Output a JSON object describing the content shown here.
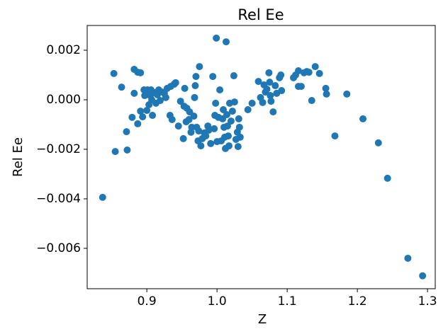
{
  "chart_data": {
    "type": "scatter",
    "title": "Rel Ee",
    "xlabel": "Z",
    "ylabel": "Rel Ee",
    "color": "#1f77b4",
    "x": [
      0.837,
      0.853,
      0.855,
      0.864,
      0.871,
      0.872,
      0.879,
      0.882,
      0.882,
      0.887,
      0.887,
      0.891,
      0.891,
      0.894,
      0.896,
      0.897,
      0.9,
      0.901,
      0.903,
      0.905,
      0.906,
      0.907,
      0.908,
      0.911,
      0.913,
      0.915,
      0.917,
      0.919,
      0.922,
      0.925,
      0.927,
      0.929,
      0.933,
      0.934,
      0.936,
      0.939,
      0.941,
      0.945,
      0.948,
      0.952,
      0.953,
      0.954,
      0.956,
      0.957,
      0.96,
      0.961,
      0.963,
      0.964,
      0.967,
      0.968,
      0.969,
      0.97,
      0.971,
      0.973,
      0.974,
      0.975,
      0.977,
      0.979,
      0.982,
      0.984,
      0.987,
      0.988,
      0.991,
      0.994,
      0.996,
      0.997,
      0.998,
      0.999,
      1.0,
      1.002,
      1.004,
      1.006,
      1.008,
      1.009,
      1.01,
      1.011,
      1.012,
      1.013,
      1.014,
      1.015,
      1.016,
      1.017,
      1.018,
      1.02,
      1.022,
      1.024,
      1.025,
      1.027,
      1.029,
      1.03,
      1.031,
      1.032,
      1.033,
      1.044,
      1.05,
      1.059,
      1.062,
      1.065,
      1.067,
      1.069,
      1.071,
      1.074,
      1.075,
      1.076,
      1.077,
      1.08,
      1.083,
      1.085,
      1.089,
      1.091,
      1.092,
      1.109,
      1.112,
      1.116,
      1.116,
      1.12,
      1.124,
      1.128,
      1.131,
      1.135,
      1.14,
      1.146,
      1.155,
      1.156,
      1.168,
      1.185,
      1.208,
      1.23,
      1.243,
      1.272,
      1.293
    ],
    "values": [
      -0.00394,
      0.00106,
      -0.00209,
      0.00051,
      -0.00129,
      -0.00203,
      -0.00071,
      0.00123,
      0.00026,
      0.00111,
      -0.00097,
      0.00109,
      -0.00046,
      -0.00069,
      0.0004,
      0.00017,
      -0.00043,
      0.0004,
      -0.0002,
      0.00017,
      0.0004,
      0.0,
      -0.00063,
      0.00029,
      -0.00014,
      0.0002,
      0.0004,
      -3e-05,
      0.00031,
      0.00026,
      9e-05,
      0.00046,
      -0.00063,
      0.00054,
      -0.0008,
      0.00063,
      0.00069,
      -0.00106,
      -6e-05,
      -0.00157,
      -0.00026,
      0.00046,
      -0.00089,
      -0.00034,
      -0.0008,
      -0.00049,
      -0.00131,
      -0.00111,
      -0.00066,
      9e-05,
      0.00057,
      0.00094,
      -0.00111,
      -0.00166,
      -0.00126,
      0.00134,
      -0.00186,
      -0.00157,
      -0.00134,
      -0.00146,
      -0.00106,
      -0.00123,
      -0.00177,
      0.00094,
      -0.00117,
      -0.00063,
      -0.00014,
      0.00249,
      -0.00169,
      -0.00071,
      0.0004,
      -0.00166,
      -0.00077,
      -0.0004,
      -0.00111,
      -0.00151,
      -0.00197,
      0.00234,
      -0.0006,
      -0.00106,
      -0.00146,
      -0.00186,
      -0.00014,
      -0.00086,
      -0.00046,
      0.00097,
      -9e-05,
      -0.0016,
      -0.00131,
      -0.00189,
      -0.00077,
      -0.00111,
      -0.00151,
      -0.0004,
      -0.00014,
      0.00074,
      9e-05,
      -0.00011,
      0.0006,
      0.00031,
      0.00043,
      0.00109,
      0.00071,
      0.00017,
      -6e-05,
      -0.00049,
      0.00057,
      0.00026,
      0.00089,
      0.001,
      0.00037,
      0.00089,
      0.001,
      0.00117,
      0.00054,
      0.00054,
      0.00109,
      0.00114,
      0.00111,
      -3e-05,
      0.00134,
      0.00106,
      0.00046,
      0.00023,
      -0.00146,
      0.00023,
      -0.00077,
      -0.00174,
      -0.00317,
      -0.0064,
      -0.00711
    ],
    "xlim": [
      0.815,
      1.311
    ],
    "ylim": [
      -0.00763,
      0.003
    ],
    "xticks": [
      {
        "value": 0.9,
        "label": "0.9"
      },
      {
        "value": 1.0,
        "label": "1.0"
      },
      {
        "value": 1.1,
        "label": "1.1"
      },
      {
        "value": 1.2,
        "label": "1.2"
      },
      {
        "value": 1.3,
        "label": "1.3"
      }
    ],
    "yticks": [
      {
        "value": -0.006,
        "label": "−0.006"
      },
      {
        "value": -0.004,
        "label": "−0.004"
      },
      {
        "value": -0.002,
        "label": "−0.002"
      },
      {
        "value": 0.0,
        "label": "0.000"
      },
      {
        "value": 0.002,
        "label": "0.002"
      }
    ],
    "grid": false
  }
}
